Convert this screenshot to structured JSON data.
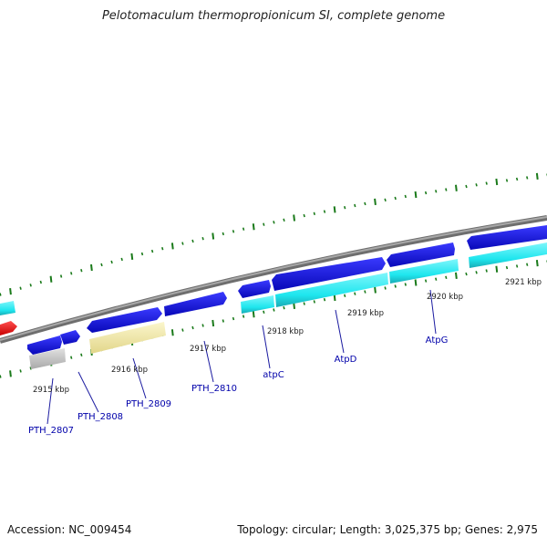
{
  "title": "Pelotomaculum thermopropionicum SI, complete genome",
  "footer": {
    "accession": "Accession: NC_009454",
    "summary": "Topology: circular; Length: 3,025,375 bp; Genes: 2,975"
  },
  "colors": {
    "background": "#ffffff",
    "backbone": "#8c8c8c",
    "cds_forward": "#1010e0",
    "cds_reverse": "#0c0cc8",
    "feature_cyan": "#1ee6ee",
    "feature_red": "#ee1010",
    "feature_grey": "#c0c0c0",
    "feature_pale_yellow": "#f2eaa6",
    "tick": "#1a7a1a",
    "label_gene": "#0000aa",
    "label_kbp": "#222222"
  },
  "kbp_labels": [
    "2915 kbp",
    "2916 kbp",
    "2917 kbp",
    "2918 kbp",
    "2919 kbp",
    "2920 kbp",
    "2921 kbp"
  ],
  "gene_labels": [
    "PTH_2807",
    "PTH_2808",
    "PTH_2809",
    "PTH_2810",
    "atpC",
    "AtpD",
    "AtpG"
  ]
}
